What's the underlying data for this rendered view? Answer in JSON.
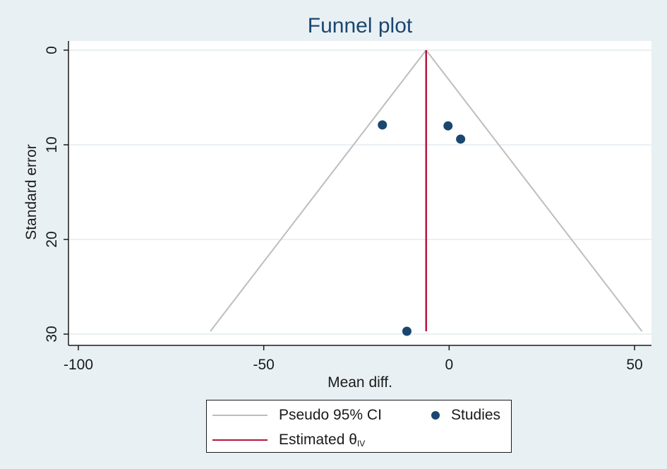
{
  "chart_data": {
    "type": "scatter",
    "title": "Funnel plot",
    "xlabel": "Mean diff.",
    "ylabel": "Standard error",
    "xlim": [
      -102,
      54
    ],
    "ylim": [
      0,
      31.2
    ],
    "y_reversed": true,
    "xticks": [
      -100,
      -50,
      0,
      50
    ],
    "yticks": [
      0,
      10,
      20,
      30
    ],
    "grid": "horizontal",
    "legend_position": "bottom",
    "estimate": -6.2,
    "se_max": 29.7,
    "pseudo_ci": {
      "left": [
        [
          -6.2,
          0
        ],
        [
          -64.4,
          29.7
        ]
      ],
      "right": [
        [
          -6.2,
          0
        ],
        [
          52,
          29.7
        ]
      ]
    },
    "series": [
      {
        "name": "Studies",
        "points": [
          {
            "x": -18.0,
            "y": 7.9
          },
          {
            "x": -0.3,
            "y": 8.0
          },
          {
            "x": 3.1,
            "y": 9.4
          },
          {
            "x": -11.4,
            "y": 29.7
          }
        ]
      }
    ],
    "legend": {
      "ci_label": "Pseudo 95% CI",
      "studies_label": "Studies",
      "est_label": "Estimated θ",
      "est_sub": "IV"
    },
    "colors": {
      "background": "#e9f0f4",
      "plot_bg": "#ffffff",
      "ci_line": "#bdbdbd",
      "estimate_line": "#b5163f",
      "points": "#1a476f",
      "grid": "#e3ecef",
      "title": "#1a476f"
    }
  }
}
